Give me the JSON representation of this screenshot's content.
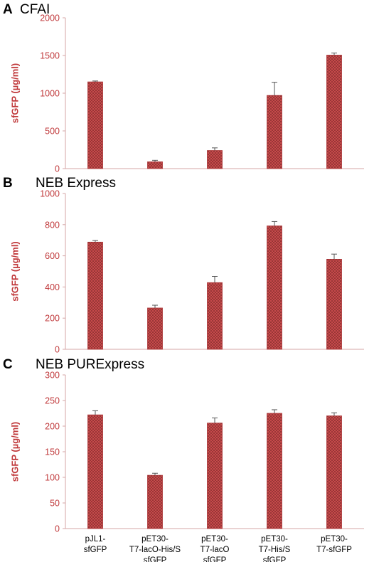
{
  "bar_color": "#c0393b",
  "axis_color": "#d4a5a5",
  "chart_data": [
    {
      "type": "bar",
      "panel_letter": "A",
      "title": "CFAI",
      "ylabel": "sfGFP (µg/ml)",
      "ylim": [
        0,
        2000
      ],
      "yticks": [
        0,
        500,
        1000,
        1500,
        2000
      ],
      "categories": [
        "pJL1-sfGFP",
        "pET30-T7-lacO-His/S sfGFP",
        "pET30-T7-lacO sfGFP",
        "pET30-T7-His/S sfGFP",
        "pET30-T7-sfGFP"
      ],
      "values": [
        1150,
        90,
        240,
        970,
        1505
      ],
      "errors": [
        12,
        20,
        35,
        175,
        28
      ],
      "show_category_labels": false
    },
    {
      "type": "bar",
      "panel_letter": "B",
      "title": "NEB Express",
      "ylabel": "sfGFP (µg/ml)",
      "ylim": [
        0,
        1000
      ],
      "yticks": [
        0,
        200,
        400,
        600,
        800,
        1000
      ],
      "categories": [
        "pJL1-sfGFP",
        "pET30-T7-lacO-His/S sfGFP",
        "pET30-T7-lacO sfGFP",
        "pET30-T7-His/S sfGFP",
        "pET30-T7-sfGFP"
      ],
      "values": [
        688,
        265,
        428,
        792,
        578
      ],
      "errors": [
        10,
        18,
        40,
        28,
        33
      ],
      "show_category_labels": false
    },
    {
      "type": "bar",
      "panel_letter": "C",
      "title": "NEB PURExpress",
      "ylabel": "sfGFP (µg/ml)",
      "ylim": [
        0,
        300
      ],
      "yticks": [
        0,
        50,
        100,
        150,
        200,
        250,
        300
      ],
      "categories": [
        "pJL1-sfGFP",
        "pET30-T7-lacO-His/S sfGFP",
        "pET30-T7-lacO sfGFP",
        "pET30-T7-His/S sfGFP",
        "pET30-T7-sfGFP"
      ],
      "category_label_lines": [
        [
          "pJL1-",
          "sfGFP"
        ],
        [
          "pET30-",
          "T7-lacO-His/S",
          "sfGFP"
        ],
        [
          "pET30-",
          "T7-lacO",
          "sfGFP"
        ],
        [
          "pET30-",
          "T7-His/S",
          "sfGFP"
        ],
        [
          "pET30-",
          "T7-sfGFP"
        ]
      ],
      "values": [
        222,
        104,
        206,
        225,
        220
      ],
      "errors": [
        8,
        4,
        10,
        7,
        6
      ],
      "show_category_labels": true
    }
  ]
}
